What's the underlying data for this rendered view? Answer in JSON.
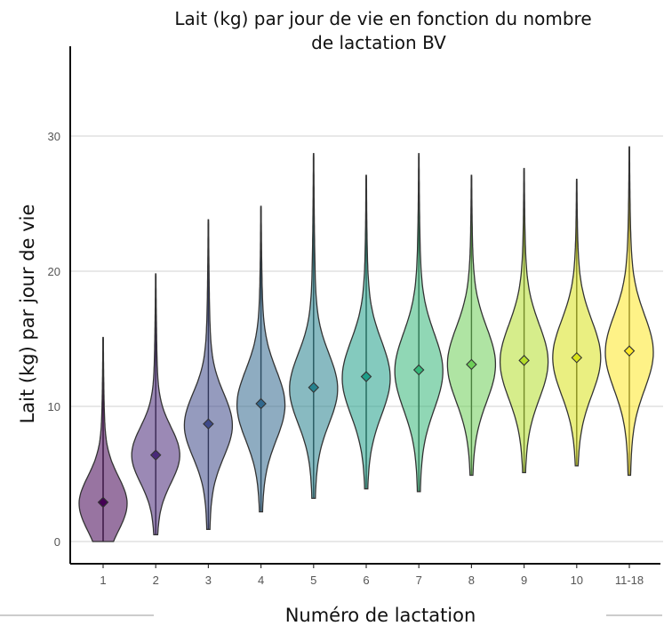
{
  "chart_data": {
    "type": "violin",
    "title_line1": "Lait (kg) par jour de vie en fonction du nombre",
    "title_line2": "de lactation BV",
    "xlabel": "Numéro de lactation",
    "ylabel": "Lait (kg) par jour de vie",
    "ylim": [
      -1,
      37
    ],
    "yticks": [
      0,
      10,
      20,
      30
    ],
    "grid": true,
    "categories": [
      "1",
      "2",
      "3",
      "4",
      "5",
      "6",
      "7",
      "8",
      "9",
      "10",
      "11-18"
    ],
    "series": [
      {
        "category": "1",
        "min": 0,
        "max": 15.1,
        "q1": 1.5,
        "median": 2.8,
        "q3": 4.3,
        "mean": 2.9,
        "color": "#440154"
      },
      {
        "category": "2",
        "min": 0.5,
        "max": 19.8,
        "q1": 5.0,
        "median": 6.4,
        "q3": 7.7,
        "mean": 6.4,
        "color": "#482878"
      },
      {
        "category": "3",
        "min": 0.9,
        "max": 23.8,
        "q1": 7.0,
        "median": 8.6,
        "q3": 10.1,
        "mean": 8.7,
        "color": "#3e4989"
      },
      {
        "category": "4",
        "min": 2.2,
        "max": 24.8,
        "q1": 8.4,
        "median": 10.1,
        "q3": 11.8,
        "mean": 10.2,
        "color": "#31688e"
      },
      {
        "category": "5",
        "min": 3.2,
        "max": 28.7,
        "q1": 9.6,
        "median": 11.3,
        "q3": 13.0,
        "mean": 11.4,
        "color": "#26828e"
      },
      {
        "category": "6",
        "min": 3.9,
        "max": 27.1,
        "q1": 10.3,
        "median": 12.1,
        "q3": 13.9,
        "mean": 12.2,
        "color": "#1f9e89"
      },
      {
        "category": "7",
        "min": 3.7,
        "max": 28.7,
        "q1": 10.8,
        "median": 12.6,
        "q3": 14.5,
        "mean": 12.7,
        "color": "#35b779"
      },
      {
        "category": "8",
        "min": 4.9,
        "max": 27.1,
        "q1": 11.3,
        "median": 13.1,
        "q3": 14.9,
        "mean": 13.1,
        "color": "#6ece58"
      },
      {
        "category": "9",
        "min": 5.1,
        "max": 27.6,
        "q1": 11.5,
        "median": 13.3,
        "q3": 15.1,
        "mean": 13.4,
        "color": "#b5de2b"
      },
      {
        "category": "10",
        "min": 5.6,
        "max": 26.8,
        "q1": 11.8,
        "median": 13.6,
        "q3": 15.4,
        "mean": 13.6,
        "color": "#d8e219"
      },
      {
        "category": "11-18",
        "min": 4.9,
        "max": 29.2,
        "q1": 12.2,
        "median": 14.0,
        "q3": 15.8,
        "mean": 14.1,
        "color": "#fde725"
      }
    ]
  }
}
